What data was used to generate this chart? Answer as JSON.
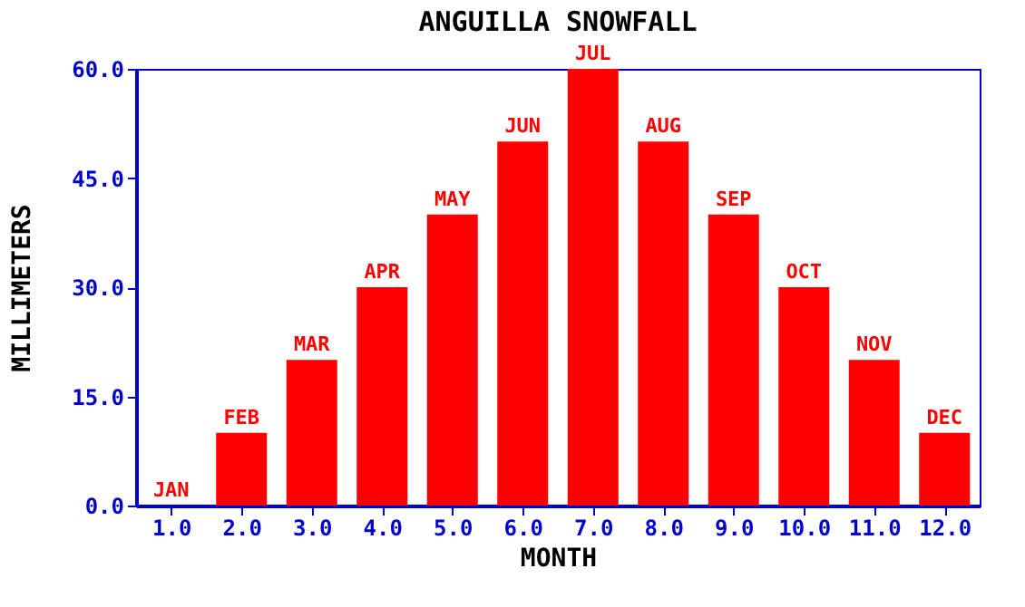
{
  "chart_data": {
    "type": "bar",
    "title": "ANGUILLA SNOWFALL",
    "xlabel": "MONTH",
    "ylabel": "MILLIMETERS",
    "x": [
      1,
      2,
      3,
      4,
      5,
      6,
      7,
      8,
      9,
      10,
      11,
      12
    ],
    "series": [
      {
        "color": "#ff0000",
        "values": [
          0,
          10,
          20,
          30,
          40,
          50,
          60,
          50,
          40,
          30,
          20,
          10
        ]
      }
    ],
    "xlim": [
      0.5,
      12.5
    ],
    "xticks": [
      {
        "value": 1,
        "label": "1.0"
      },
      {
        "value": 2,
        "label": "2.0"
      },
      {
        "value": 3,
        "label": "3.0"
      },
      {
        "value": 4,
        "label": "4.0"
      },
      {
        "value": 5,
        "label": "5.0"
      },
      {
        "value": 6,
        "label": "6.0"
      },
      {
        "value": 7,
        "label": "7.0"
      },
      {
        "value": 8,
        "label": "8.0"
      },
      {
        "value": 9,
        "label": "9.0"
      },
      {
        "value": 10,
        "label": "10.0"
      },
      {
        "value": 11,
        "label": "11.0"
      },
      {
        "value": 12,
        "label": "12.0"
      }
    ],
    "ylim": [
      0,
      60
    ],
    "yticks": [
      {
        "value": 0,
        "label": "0.0"
      },
      {
        "value": 15,
        "label": "15.0"
      },
      {
        "value": 30,
        "label": "30.0"
      },
      {
        "value": 45,
        "label": "45.0"
      },
      {
        "value": 60,
        "label": "60.0"
      }
    ],
    "annotations": [
      {
        "text": "JAN",
        "x": 1,
        "y": 0
      },
      {
        "text": "FEB",
        "x": 2,
        "y": 10
      },
      {
        "text": "MAR",
        "x": 3,
        "y": 20
      },
      {
        "text": "APR",
        "x": 4,
        "y": 30
      },
      {
        "text": "MAY",
        "x": 5,
        "y": 40
      },
      {
        "text": "JUN",
        "x": 6,
        "y": 50
      },
      {
        "text": "JUL",
        "x": 7,
        "y": 60
      },
      {
        "text": "AUG",
        "x": 8,
        "y": 50
      },
      {
        "text": "SEP",
        "x": 9,
        "y": 40
      },
      {
        "text": "OCT",
        "x": 10,
        "y": 30
      },
      {
        "text": "NOV",
        "x": 11,
        "y": 20
      },
      {
        "text": "DEC",
        "x": 12,
        "y": 10
      }
    ],
    "grid": false
  }
}
